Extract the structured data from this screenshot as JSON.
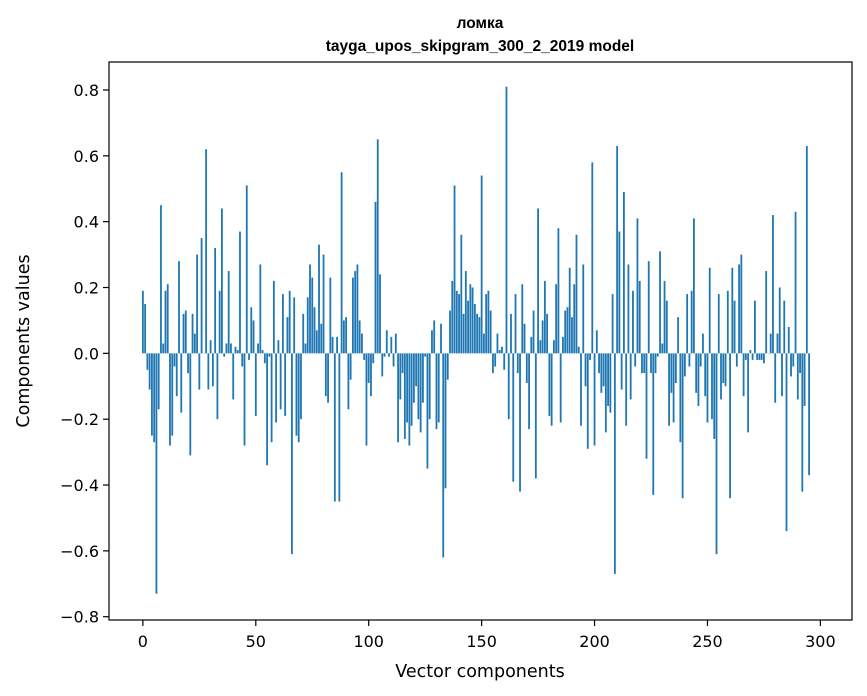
{
  "chart_data": {
    "type": "bar",
    "title": "ломка",
    "subtitle": "tayga_upos_skipgram_300_2_2019 model",
    "xlabel": "Vector components",
    "ylabel": "Components values",
    "xlim": [
      -15,
      314
    ],
    "ylim": [
      -0.81,
      0.885
    ],
    "xticks": [
      0,
      50,
      100,
      150,
      200,
      250,
      300
    ],
    "xtick_labels": [
      "0",
      "50",
      "100",
      "150",
      "200",
      "250",
      "300"
    ],
    "yticks": [
      -0.8,
      -0.6,
      -0.4,
      -0.2,
      0.0,
      0.2,
      0.4,
      0.6,
      0.8
    ],
    "ytick_labels": [
      "−0.8",
      "−0.6",
      "−0.4",
      "−0.2",
      "0.0",
      "0.2",
      "0.4",
      "0.6",
      "0.8"
    ],
    "bar_color": "#1f77b4",
    "grid": false,
    "x_start": 0,
    "values": [
      0.19,
      0.15,
      -0.05,
      -0.11,
      -0.25,
      -0.27,
      -0.73,
      -0.17,
      0.45,
      0.03,
      0.19,
      0.21,
      -0.28,
      -0.25,
      -0.04,
      -0.13,
      0.28,
      -0.18,
      0.12,
      0.13,
      -0.06,
      -0.31,
      0.12,
      0.06,
      0.3,
      -0.11,
      0.35,
      0.0,
      0.62,
      -0.11,
      0.04,
      -0.1,
      0.32,
      -0.2,
      0.19,
      0.44,
      -0.01,
      0.03,
      0.25,
      0.03,
      -0.14,
      0.02,
      0.01,
      0.37,
      -0.04,
      -0.28,
      0.51,
      -0.02,
      0.14,
      0.1,
      -0.19,
      0.03,
      0.27,
      0.01,
      -0.03,
      -0.34,
      -0.01,
      -0.27,
      0.22,
      -0.21,
      0.04,
      -0.17,
      0.18,
      -0.19,
      0.11,
      0.19,
      -0.61,
      0.17,
      -0.25,
      -0.27,
      -0.2,
      0.12,
      0.03,
      0.17,
      0.27,
      0.23,
      0.14,
      0.07,
      0.33,
      0.09,
      0.3,
      -0.13,
      -0.15,
      0.23,
      0.05,
      -0.45,
      0.05,
      -0.45,
      0.55,
      0.1,
      0.11,
      -0.17,
      -0.08,
      0.23,
      0.25,
      0.27,
      0.1,
      0.06,
      -0.02,
      -0.28,
      -0.09,
      -0.13,
      -0.03,
      0.46,
      0.65,
      0.24,
      -0.07,
      -0.01,
      0.07,
      -0.01,
      0.05,
      -0.04,
      0.06,
      -0.27,
      -0.14,
      -0.06,
      -0.26,
      -0.21,
      -0.28,
      -0.22,
      -0.15,
      -0.1,
      -0.2,
      -0.24,
      -0.15,
      -0.01,
      -0.35,
      -0.2,
      0.07,
      0.1,
      -0.23,
      -0.21,
      0.09,
      -0.62,
      -0.41,
      -0.08,
      0.13,
      0.22,
      0.51,
      0.19,
      0.18,
      0.36,
      0.12,
      0.25,
      0.16,
      0.21,
      0.2,
      0.15,
      0.12,
      0.11,
      0.54,
      0.06,
      0.18,
      0.19,
      0.13,
      -0.06,
      -0.04,
      0.06,
      0.01,
      0.02,
      -0.05,
      0.81,
      -0.2,
      0.12,
      -0.39,
      0.18,
      -0.06,
      -0.42,
      0.21,
      0.09,
      -0.09,
      -0.23,
      0.05,
      0.13,
      -0.38,
      0.44,
      0.04,
      0.1,
      0.22,
      0.12,
      -0.19,
      -0.22,
      0.04,
      0.21,
      0.38,
      -0.21,
      0.05,
      0.13,
      0.14,
      0.26,
      0.11,
      0.21,
      0.36,
      0.02,
      -0.22,
      0.27,
      -0.1,
      -0.29,
      -0.02,
      0.58,
      -0.28,
      0.07,
      -0.06,
      -0.12,
      -0.1,
      -0.24,
      -0.16,
      -0.18,
      0.18,
      -0.67,
      0.63,
      0.37,
      -0.11,
      0.49,
      -0.22,
      0.27,
      -0.14,
      0.19,
      -0.04,
      0.41,
      0.22,
      -0.06,
      -0.06,
      -0.32,
      0.28,
      -0.06,
      -0.43,
      -0.06,
      -0.01,
      0.31,
      0.03,
      0.22,
      0.16,
      -0.22,
      -0.12,
      -0.21,
      -0.09,
      0.11,
      -0.27,
      -0.44,
      -0.07,
      0.18,
      -0.04,
      0.19,
      0.41,
      -0.12,
      -0.16,
      -0.04,
      0.06,
      -0.13,
      -0.21,
      0.26,
      -0.2,
      -0.26,
      -0.61,
      0.18,
      -0.14,
      -0.09,
      -0.1,
      0.19,
      -0.44,
      0.26,
      0.16,
      -0.04,
      0.27,
      0.3,
      -0.13,
      -0.02,
      -0.24,
      0.01,
      -0.02,
      0.16,
      -0.02,
      -0.02,
      -0.02,
      -0.03,
      0.25,
      0.0,
      0.06,
      0.42,
      -0.15,
      0.06,
      0.2,
      -0.13,
      0.16,
      -0.54,
      0.08,
      -0.07,
      -0.04,
      0.43,
      -0.14,
      -0.06,
      -0.42,
      -0.16,
      0.63,
      -0.37
    ]
  }
}
